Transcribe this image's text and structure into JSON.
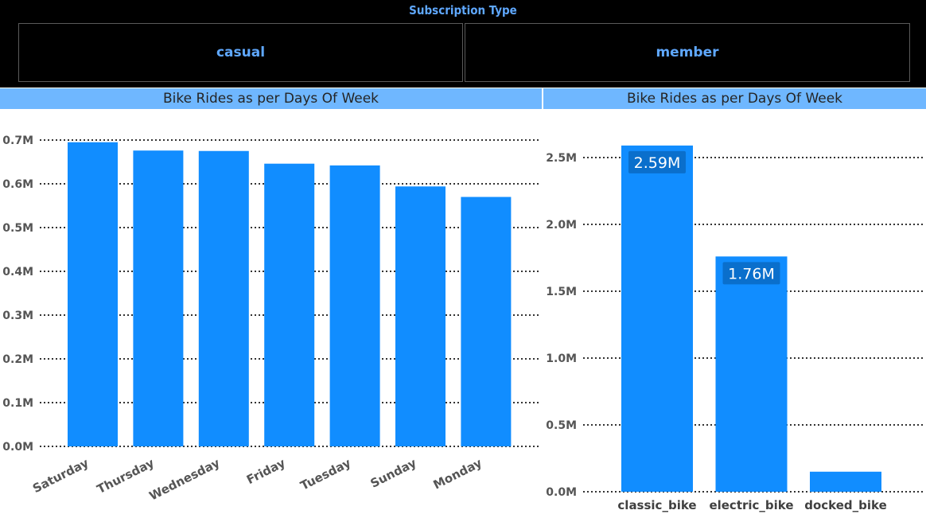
{
  "slicer": {
    "title": "Subscription Type",
    "options": [
      "casual",
      "member"
    ]
  },
  "colors": {
    "bar": "#118dff",
    "header_bg": "#6fb7ff",
    "slicer_text": "#5fa8ff",
    "grid": "#333333",
    "tick_text": "#555555"
  },
  "chart_data": [
    {
      "type": "bar",
      "title": "Bike Rides as per Days Of Week",
      "categories": [
        "Saturday",
        "Thursday",
        "Wednesday",
        "Friday",
        "Tuesday",
        "Sunday",
        "Monday"
      ],
      "values": [
        0.695,
        0.676,
        0.675,
        0.646,
        0.642,
        0.594,
        0.57
      ],
      "yticks": [
        0,
        0.1,
        0.2,
        0.3,
        0.4,
        0.5,
        0.6,
        0.7
      ],
      "ytick_labels": [
        "0.0M",
        "0.1M",
        "0.2M",
        "0.3M",
        "0.4M",
        "0.5M",
        "0.6M",
        "0.7M"
      ],
      "ylim": [
        0,
        0.7
      ],
      "grid": true
    },
    {
      "type": "bar",
      "title": "Bike Rides as per Days Of Week",
      "categories": [
        "classic_bike",
        "electric_bike",
        "docked_bike"
      ],
      "values": [
        2.59,
        1.76,
        0.15
      ],
      "data_labels": [
        "2.59M",
        "1.76M",
        ""
      ],
      "yticks": [
        0,
        0.5,
        1.0,
        1.5,
        2.0,
        2.5
      ],
      "ytick_labels": [
        "0.0M",
        "0.5M",
        "1.0M",
        "1.5M",
        "2.0M",
        "2.5M"
      ],
      "ylim": [
        0,
        2.5
      ],
      "grid": true
    }
  ]
}
